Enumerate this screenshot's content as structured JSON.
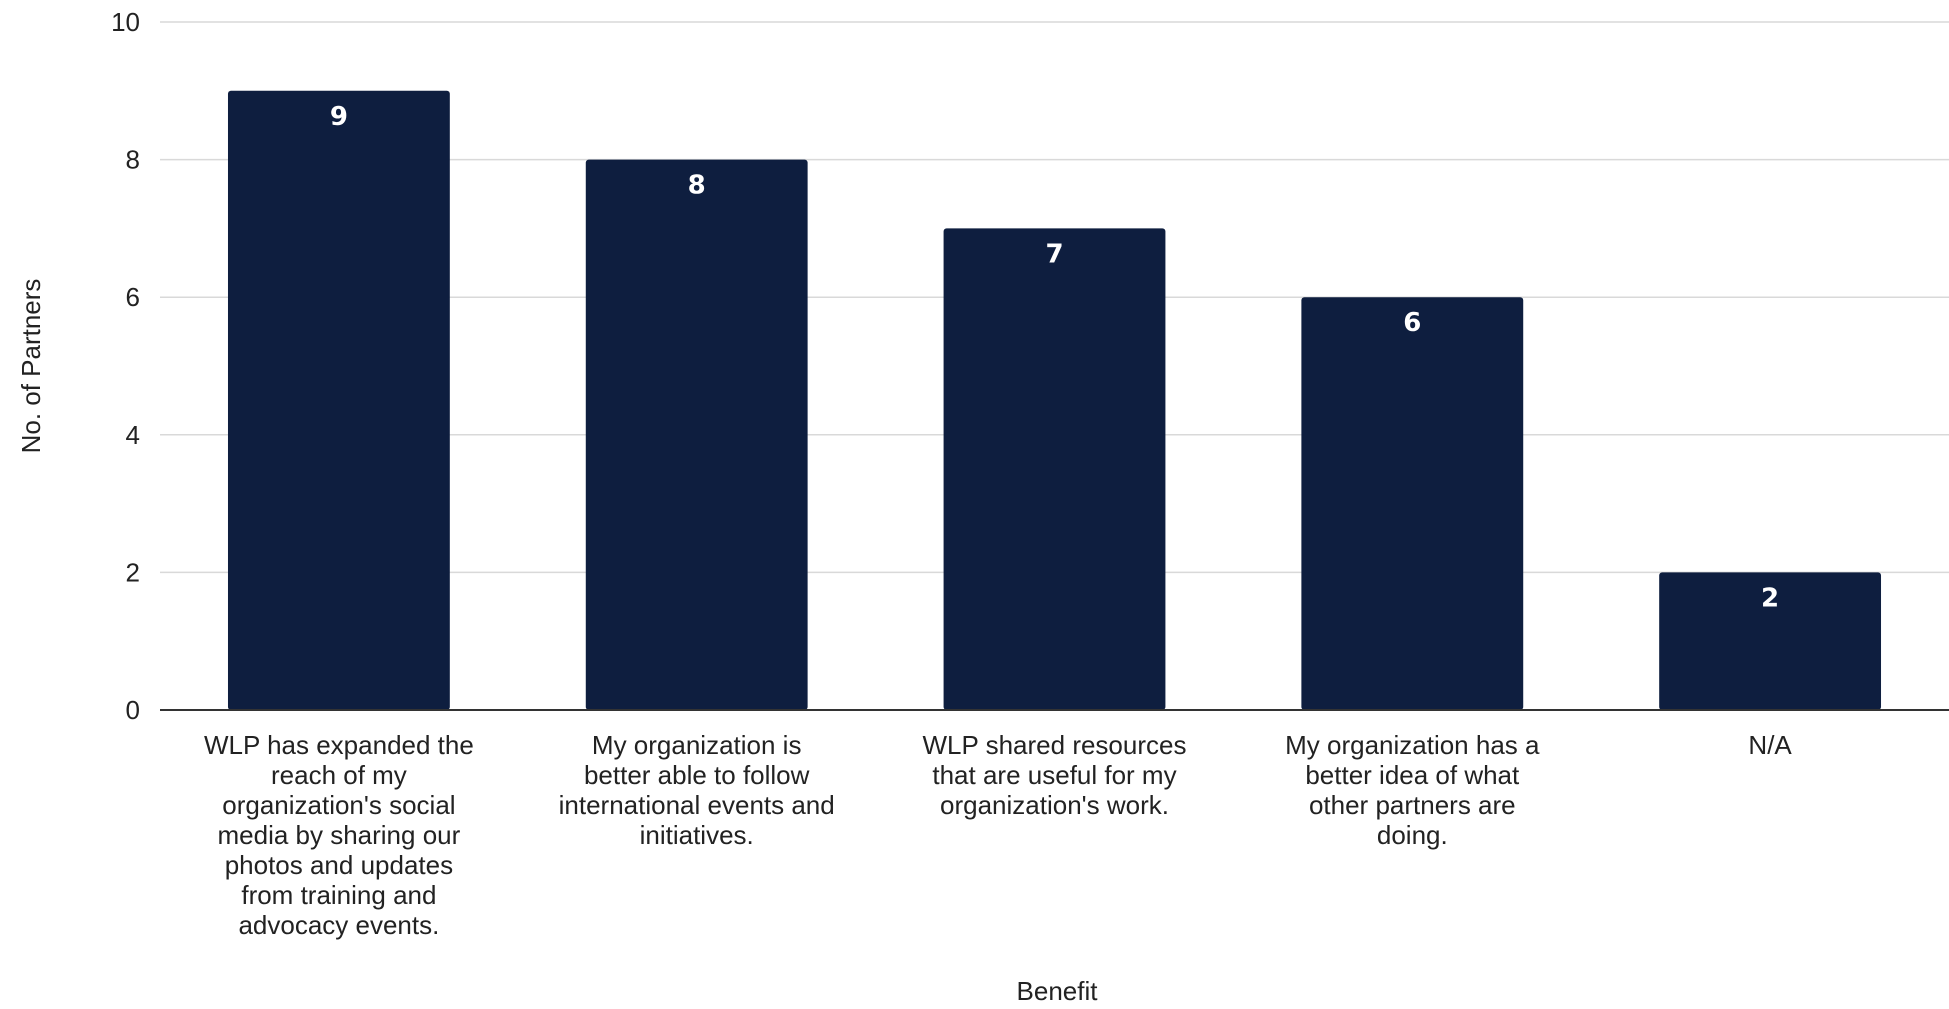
{
  "chart_data": {
    "type": "bar",
    "categories": [
      [
        "WLP has expanded the",
        "reach of my",
        "organization's social",
        "media by sharing our",
        "photos and updates",
        "from training and",
        "advocacy events."
      ],
      [
        "My organization is",
        "better able to follow",
        "international events and",
        "initiatives."
      ],
      [
        "WLP shared resources",
        "that are useful for my",
        "organization's work."
      ],
      [
        "My organization has a",
        "better idea of what",
        "other partners are",
        "doing."
      ],
      [
        "N/A"
      ]
    ],
    "values": [
      9,
      8,
      7,
      6,
      2
    ],
    "data_labels": [
      "9",
      "8",
      "7",
      "6",
      "2"
    ],
    "xlabel": "Benefit",
    "ylabel": "No. of Partners",
    "ylim": [
      0,
      10
    ],
    "yticks": [
      0,
      2,
      4,
      6,
      8,
      10
    ],
    "ytick_labels": [
      "0",
      "2",
      "4",
      "6",
      "8",
      "10"
    ],
    "grid": true,
    "legend": "none",
    "bar_color": "#0e1e3f",
    "grid_color": "#d9d9d9",
    "axis_color": "#333333"
  }
}
